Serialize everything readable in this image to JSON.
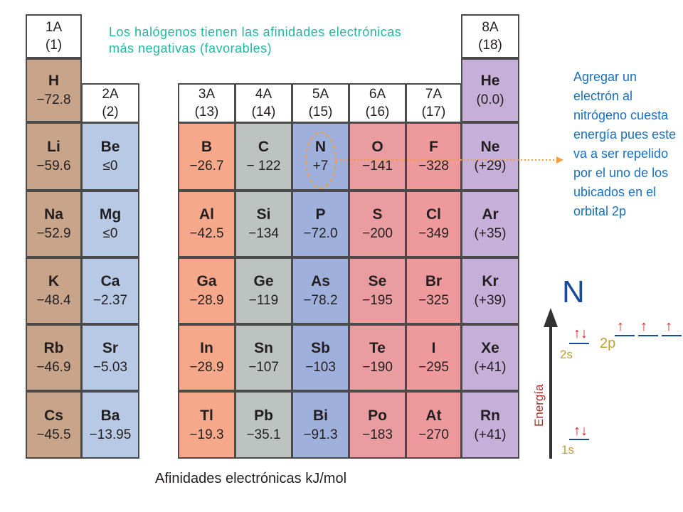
{
  "colors": {
    "alkali": "#c8a48a",
    "alkaline_earth": "#b7c9e4",
    "group13": "#f6a98a",
    "group14": "#bcc3c0",
    "group15": "#9fb0dc",
    "group16": "#e99da0",
    "group17": "#ee9a9c",
    "noble": "#c6afd9",
    "header": "#ffffff",
    "halogen_note": "#1fb8a0",
    "nitrogen_note": "#1870c0",
    "dashed_marker": "#f0a040",
    "energy_axis_label": "#a0302a",
    "orbital_label": "#c0a030",
    "electron_arrow": "#e02020",
    "orbital_line": "#1a4a9a"
  },
  "headers": [
    {
      "id": "1A",
      "top": "1A",
      "bot": "(1)"
    },
    {
      "id": "2A",
      "top": "2A",
      "bot": "(2)"
    },
    {
      "id": "3A",
      "top": "3A",
      "bot": "(13)"
    },
    {
      "id": "4A",
      "top": "4A",
      "bot": "(14)"
    },
    {
      "id": "5A",
      "top": "5A",
      "bot": "(15)"
    },
    {
      "id": "6A",
      "top": "6A",
      "bot": "(16)"
    },
    {
      "id": "7A",
      "top": "7A",
      "bot": "(17)"
    },
    {
      "id": "8A",
      "top": "8A",
      "bot": "(18)"
    }
  ],
  "elements": {
    "g1": [
      {
        "sym": "H",
        "val": "−72.8"
      },
      {
        "sym": "Li",
        "val": "−59.6"
      },
      {
        "sym": "Na",
        "val": "−52.9"
      },
      {
        "sym": "K",
        "val": "−48.4"
      },
      {
        "sym": "Rb",
        "val": "−46.9"
      },
      {
        "sym": "Cs",
        "val": "−45.5"
      }
    ],
    "g2": [
      {
        "sym": "Be",
        "val": "≤0"
      },
      {
        "sym": "Mg",
        "val": "≤0"
      },
      {
        "sym": "Ca",
        "val": "−2.37"
      },
      {
        "sym": "Sr",
        "val": "−5.03"
      },
      {
        "sym": "Ba",
        "val": "−13.95"
      }
    ],
    "g13": [
      {
        "sym": "B",
        "val": "−26.7"
      },
      {
        "sym": "Al",
        "val": "−42.5"
      },
      {
        "sym": "Ga",
        "val": "−28.9"
      },
      {
        "sym": "In",
        "val": "−28.9"
      },
      {
        "sym": "Tl",
        "val": "−19.3"
      }
    ],
    "g14": [
      {
        "sym": "C",
        "val": "− 122"
      },
      {
        "sym": "Si",
        "val": "−134"
      },
      {
        "sym": "Ge",
        "val": "−119"
      },
      {
        "sym": "Sn",
        "val": "−107"
      },
      {
        "sym": "Pb",
        "val": "−35.1"
      }
    ],
    "g15": [
      {
        "sym": "N",
        "val": "+7"
      },
      {
        "sym": "P",
        "val": "−72.0"
      },
      {
        "sym": "As",
        "val": "−78.2"
      },
      {
        "sym": "Sb",
        "val": "−103"
      },
      {
        "sym": "Bi",
        "val": "−91.3"
      }
    ],
    "g16": [
      {
        "sym": "O",
        "val": "−141"
      },
      {
        "sym": "S",
        "val": "−200"
      },
      {
        "sym": "Se",
        "val": "−195"
      },
      {
        "sym": "Te",
        "val": "−190"
      },
      {
        "sym": "Po",
        "val": "−183"
      }
    ],
    "g17": [
      {
        "sym": "F",
        "val": "−328"
      },
      {
        "sym": "Cl",
        "val": "−349"
      },
      {
        "sym": "Br",
        "val": "−325"
      },
      {
        "sym": "I",
        "val": "−295"
      },
      {
        "sym": "At",
        "val": "−270"
      }
    ],
    "g18": [
      {
        "sym": "He",
        "val": "(0.0)"
      },
      {
        "sym": "Ne",
        "val": "(+29)"
      },
      {
        "sym": "Ar",
        "val": "(+35)"
      },
      {
        "sym": "Kr",
        "val": "(+39)"
      },
      {
        "sym": "Xe",
        "val": "(+41)"
      },
      {
        "sym": "Rn",
        "val": "(+41)"
      }
    ]
  },
  "notes": {
    "halogen": "Los halógenos tienen las afinidades electrónicas más negativas (favorables)",
    "nitrogen": "Agregar un electrón al nitrógeno cuesta energía pues este va a ser repelido por el uno de los ubicados en el orbital 2p"
  },
  "caption": "Afinidades electrónicas kJ/mol",
  "orbital_diagram": {
    "element": "N",
    "axis_label": "Energía",
    "levels": [
      {
        "label": "1s",
        "electrons": "↑↓"
      },
      {
        "label": "2s",
        "electrons": "↑↓"
      },
      {
        "label": "2p",
        "electrons": [
          "↑",
          "↑",
          "↑"
        ]
      }
    ]
  }
}
